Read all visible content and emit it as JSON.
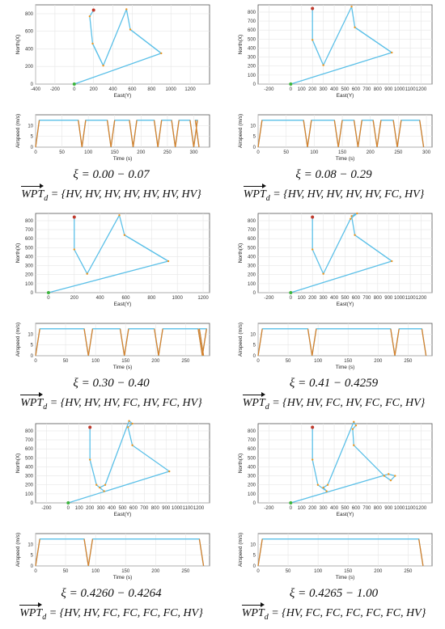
{
  "chart_data": [
    {
      "type": "line",
      "position": "top-left",
      "xi_label": "ξ = 0.00 − 0.07",
      "wpt_values": "{HV, HV, HV, HV, HV, HV, HV}",
      "wpt_eq": "=",
      "trajectory": {
        "xlabel": "East(Y)",
        "ylabel": "North(X)",
        "xlim": [
          -400,
          1400
        ],
        "ylim": [
          0,
          900
        ],
        "xticks": [
          -400,
          -200,
          0,
          200,
          400,
          600,
          800,
          1000,
          1200
        ],
        "yticks": [
          0,
          200,
          400,
          600,
          800
        ],
        "x": [
          0,
          900,
          580,
          540,
          300,
          190,
          160,
          200
        ],
        "y": [
          0,
          350,
          620,
          850,
          210,
          460,
          770,
          840
        ],
        "segments": [
          {
            "x0": 900,
            "y0": 350,
            "x1": 580,
            "y1": 620
          },
          {
            "x0": 300,
            "y0": 210,
            "x1": 190,
            "y1": 460
          }
        ]
      },
      "airspeed": {
        "xlabel": "Time (s)",
        "ylabel": "Airspeed (m/s)",
        "xlim": [
          0,
          330
        ],
        "ylim": [
          0,
          15
        ],
        "xticks": [
          0,
          50,
          100,
          150,
          200,
          250,
          300
        ],
        "yticks": [
          0,
          5,
          10
        ],
        "cruise": 12.5,
        "stops": [
          88,
          143,
          185,
          232,
          265,
          300
        ],
        "end": 310
      }
    },
    {
      "type": "line",
      "position": "top-right",
      "xi_label": "ξ = 0.08 − 0.29",
      "wpt_values": "{HV, HV, HV, HV, HV, FC, HV}",
      "wpt_eq": "=",
      "trajectory": {
        "xlabel": "East(Y)",
        "ylabel": "North(X)",
        "xlim": [
          -300,
          1300
        ],
        "ylim": [
          0,
          880
        ],
        "xticks": [
          -200,
          0,
          100,
          200,
          300,
          400,
          500,
          600,
          700,
          800,
          900,
          1000,
          1100,
          1200
        ],
        "yticks": [
          0,
          100,
          200,
          300,
          400,
          500,
          600,
          700,
          800
        ],
        "x": [
          0,
          930,
          590,
          560,
          300,
          200,
          200
        ],
        "y": [
          0,
          350,
          630,
          860,
          210,
          490,
          840
        ],
        "segments": [
          {
            "x0": 930,
            "y0": 350,
            "x1": 590,
            "y1": 630
          }
        ]
      },
      "airspeed": {
        "xlabel": "Time (s)",
        "ylabel": "Airspeed (m/s)",
        "xlim": [
          0,
          310
        ],
        "ylim": [
          0,
          15
        ],
        "xticks": [
          0,
          50,
          100,
          150,
          200,
          250,
          300
        ],
        "yticks": [
          0,
          5,
          10
        ],
        "cruise": 12.5,
        "stops": [
          88,
          143,
          178,
          212,
          248
        ],
        "end": 295
      }
    },
    {
      "type": "line",
      "position": "middle-left",
      "xi_label": "ξ = 0.30 − 0.40",
      "wpt_values": "{HV, HV, HV, FC, HV, FC, HV}",
      "wpt_eq": "=",
      "trajectory": {
        "xlabel": "East(Y)",
        "ylabel": "North(X)",
        "xlim": [
          -100,
          1250
        ],
        "ylim": [
          0,
          880
        ],
        "xticks": [
          0,
          200,
          400,
          600,
          800,
          1000,
          1200
        ],
        "yticks": [
          0,
          100,
          200,
          300,
          400,
          500,
          600,
          700,
          800
        ],
        "x": [
          0,
          930,
          590,
          550,
          300,
          200,
          200
        ],
        "y": [
          0,
          350,
          640,
          860,
          210,
          480,
          840
        ],
        "segments": [
          {
            "x0": 930,
            "y0": 350,
            "x1": 590,
            "y1": 640
          }
        ]
      },
      "airspeed": {
        "xlabel": "Time (s)",
        "ylabel": "Airspeed (m/s)",
        "xlim": [
          0,
          290
        ],
        "ylim": [
          0,
          15
        ],
        "xticks": [
          0,
          50,
          100,
          150,
          200,
          250
        ],
        "yticks": [
          0,
          5,
          10
        ],
        "cruise": 12.5,
        "stops": [
          88,
          148,
          205,
          278
        ],
        "end": 280
      }
    },
    {
      "type": "line",
      "position": "middle-right",
      "xi_label": "ξ = 0.41 − 0.4259",
      "wpt_values": "{HV, HV, FC, HV, FC, FC, HV}",
      "wpt_eq": "=",
      "trajectory": {
        "xlabel": "East(Y)",
        "ylabel": "North(X)",
        "xlim": [
          -300,
          1300
        ],
        "ylim": [
          0,
          880
        ],
        "xticks": [
          -200,
          0,
          100,
          200,
          300,
          400,
          500,
          600,
          700,
          800,
          900,
          1000,
          1100,
          1200
        ],
        "yticks": [
          0,
          100,
          200,
          300,
          400,
          500,
          600,
          700,
          800
        ],
        "x": [
          0,
          930,
          590,
          560,
          610,
          550,
          300,
          200,
          200
        ],
        "y": [
          0,
          350,
          640,
          850,
          880,
          820,
          210,
          480,
          840
        ],
        "segments": [
          {
            "x0": 930,
            "y0": 350,
            "x1": 590,
            "y1": 640
          }
        ]
      },
      "airspeed": {
        "xlabel": "Time (s)",
        "ylabel": "Airspeed (m/s)",
        "xlim": [
          0,
          290
        ],
        "ylim": [
          0,
          15
        ],
        "xticks": [
          0,
          50,
          100,
          150,
          200,
          250
        ],
        "yticks": [
          0,
          5,
          10
        ],
        "cruise": 12.5,
        "stops": [
          90,
          228
        ],
        "end": 280
      }
    },
    {
      "type": "line",
      "position": "bottom-left",
      "xi_label": "ξ = 0.4260 − 0.4264",
      "wpt_values": "{HV, HV, FC, FC, FC, FC, HV}",
      "wpt_eq": "=",
      "trajectory": {
        "xlabel": "East(Y)",
        "ylabel": "North(X)",
        "xlim": [
          -300,
          1300
        ],
        "ylim": [
          0,
          880
        ],
        "xticks": [
          -200,
          0,
          100,
          200,
          300,
          400,
          500,
          600,
          700,
          800,
          900,
          1000,
          1100,
          1200
        ],
        "yticks": [
          0,
          100,
          200,
          300,
          400,
          500,
          600,
          700,
          800
        ],
        "x": [
          0,
          930,
          590,
          550,
          590,
          560,
          340,
          290,
          330,
          260,
          200,
          200
        ],
        "y": [
          0,
          350,
          640,
          840,
          880,
          910,
          200,
          170,
          130,
          200,
          480,
          840
        ],
        "segments": []
      },
      "airspeed": {
        "xlabel": "Time (s)",
        "ylabel": "Airspeed (m/s)",
        "xlim": [
          0,
          290
        ],
        "ylim": [
          0,
          15
        ],
        "xticks": [
          0,
          50,
          100,
          150,
          200,
          250
        ],
        "yticks": [
          0,
          5,
          10
        ],
        "cruise": 12.5,
        "stops": [
          88
        ],
        "end": 280
      }
    },
    {
      "type": "line",
      "position": "bottom-right",
      "xi_label": "ξ = 0.4265 − 1.00",
      "wpt_values": "{HV, FC, FC, FC, FC, FC, HV}",
      "wpt_eq": "=",
      "trajectory": {
        "xlabel": "East(Y)",
        "ylabel": "North(X)",
        "xlim": [
          -300,
          1300
        ],
        "ylim": [
          0,
          880
        ],
        "xticks": [
          -200,
          0,
          100,
          200,
          300,
          400,
          500,
          600,
          700,
          800,
          900,
          1000,
          1100,
          1200
        ],
        "yticks": [
          0,
          100,
          200,
          300,
          400,
          500,
          600,
          700,
          800
        ],
        "x": [
          0,
          900,
          960,
          920,
          860,
          580,
          570,
          600,
          580,
          340,
          300,
          330,
          250,
          200,
          200
        ],
        "y": [
          0,
          320,
          300,
          250,
          300,
          640,
          820,
          860,
          900,
          200,
          170,
          130,
          200,
          480,
          840
        ],
        "segments": []
      },
      "airspeed": {
        "xlabel": "Time (s)",
        "ylabel": "Airspeed (m/s)",
        "xlim": [
          0,
          290
        ],
        "ylim": [
          0,
          15
        ],
        "xticks": [
          0,
          50,
          100,
          150,
          200,
          250
        ],
        "yticks": [
          0,
          5,
          10
        ],
        "cruise": 12.5,
        "stops": [],
        "end": 275
      }
    }
  ],
  "wpt_symbol": "WPT",
  "wpt_sub": "d",
  "colors": {
    "path": "#5bc0e8",
    "turn": "#f0961e",
    "start": "#3cb43c",
    "end": "#c0392b",
    "axes": "#555555",
    "grid": "#e6e6e6",
    "speed_up": "#d9822b",
    "speed_zero": "#2f78c4"
  }
}
